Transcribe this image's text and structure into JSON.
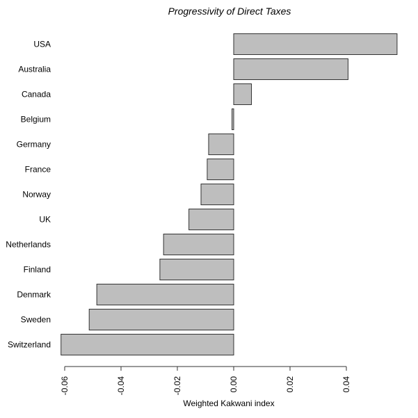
{
  "chart_data": {
    "type": "bar",
    "orientation": "horizontal",
    "title": "Progressivity of Direct Taxes",
    "xlabel": "Weighted Kakwani index",
    "ylabel": "",
    "xlim": [
      -0.062,
      0.059
    ],
    "xticks": [
      -0.06,
      -0.04,
      -0.02,
      0.0,
      0.02,
      0.04
    ],
    "xtick_labels": [
      "-0.06",
      "-0.04",
      "-0.02",
      "0.00",
      "0.02",
      "0.04"
    ],
    "grid": false,
    "legend": null,
    "bar_color": "#bebebe",
    "bar_edge_color": "#333333",
    "categories": [
      "USA",
      "Australia",
      "Canada",
      "Belgium",
      "Germany",
      "France",
      "Norway",
      "UK",
      "Netherlands",
      "Finland",
      "Denmark",
      "Sweden",
      "Switzerland"
    ],
    "values": [
      0.058,
      0.0406,
      0.0063,
      -0.0006,
      -0.0089,
      -0.0094,
      -0.0116,
      -0.0159,
      -0.0249,
      -0.0262,
      -0.0486,
      -0.0513,
      -0.0613
    ]
  }
}
